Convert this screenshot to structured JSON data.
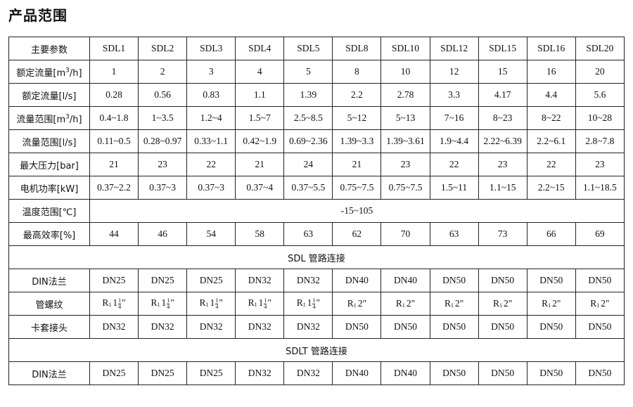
{
  "title": "产品范围",
  "table": {
    "header": [
      "主要参数",
      "SDL1",
      "SDL2",
      "SDL3",
      "SDL4",
      "SDL5",
      "SDL8",
      "SDL10",
      "SDL12",
      "SDL15",
      "SDL16",
      "SDL20"
    ],
    "rows": [
      {
        "label": "额定流量[m",
        "label_sup": "3",
        "label_tail": "/h]",
        "values": [
          "1",
          "2",
          "3",
          "4",
          "5",
          "8",
          "10",
          "12",
          "15",
          "16",
          "20"
        ]
      },
      {
        "label": "额定流量[l/s]",
        "values": [
          "0.28",
          "0.56",
          "0.83",
          "1.1",
          "1.39",
          "2.2",
          "2.78",
          "3.3",
          "4.17",
          "4.4",
          "5.6"
        ]
      },
      {
        "label": "流量范围[m",
        "label_sup": "3",
        "label_tail": "/h]",
        "values": [
          "0.4~1.8",
          "1~3.5",
          "1.2~4",
          "1.5~7",
          "2.5~8.5",
          "5~12",
          "5~13",
          "7~16",
          "8~23",
          "8~22",
          "10~28"
        ]
      },
      {
        "label": "流量范围[l/s]",
        "values": [
          "0.11~0.5",
          "0.28~0.97",
          "0.33~1.1",
          "0.42~1.9",
          "0.69~2.36",
          "1.39~3.3",
          "1.39~3.61",
          "1.9~4.4",
          "2.22~6.39",
          "2.2~6.1",
          "2.8~7.8"
        ]
      },
      {
        "label": "最大压力[bar]",
        "values": [
          "21",
          "23",
          "22",
          "21",
          "24",
          "21",
          "23",
          "22",
          "23",
          "22",
          "23"
        ]
      },
      {
        "label": "电机功率[kW]",
        "values": [
          "0.37~2.2",
          "0.37~3",
          "0.37~3",
          "0.37~4",
          "0.37~5.5",
          "0.75~7.5",
          "0.75~7.5",
          "1.5~11",
          "1.1~15",
          "2.2~15",
          "1.1~18.5"
        ]
      },
      {
        "label": "温度范围[℃]",
        "span": "-15~105"
      },
      {
        "label": "最高效率[%]",
        "values": [
          "44",
          "46",
          "54",
          "58",
          "63",
          "62",
          "70",
          "63",
          "73",
          "66",
          "69"
        ]
      },
      {
        "section": "SDL 管路连接"
      },
      {
        "label": "DIN法兰",
        "values": [
          "DN25",
          "DN25",
          "DN25",
          "DN32",
          "DN32",
          "DN40",
          "DN40",
          "DN50",
          "DN50",
          "DN50",
          "DN50"
        ]
      },
      {
        "label": "管螺纹",
        "threads": [
          {
            "r": "R",
            "sub": "1",
            "whole": "1",
            "num": "1",
            "den": "4",
            "mark": "\""
          },
          {
            "r": "R",
            "sub": "1",
            "whole": "1",
            "num": "1",
            "den": "4",
            "mark": "\""
          },
          {
            "r": "R",
            "sub": "1",
            "whole": "1",
            "num": "1",
            "den": "4",
            "mark": "\""
          },
          {
            "r": "R",
            "sub": "1",
            "whole": "1",
            "num": "1",
            "den": "4",
            "mark": "\""
          },
          {
            "r": "R",
            "sub": "1",
            "whole": "1",
            "num": "1",
            "den": "4",
            "mark": "\""
          },
          {
            "r": "R",
            "sub": "1",
            "whole": "2",
            "mark": "\""
          },
          {
            "r": "R",
            "sub": "1",
            "whole": "2",
            "mark": "\""
          },
          {
            "r": "R",
            "sub": "1",
            "whole": "2",
            "mark": "\""
          },
          {
            "r": "R",
            "sub": "1",
            "whole": "2",
            "mark": "\""
          },
          {
            "r": "R",
            "sub": "1",
            "whole": "2",
            "mark": "\""
          },
          {
            "r": "R",
            "sub": "1",
            "whole": "2",
            "mark": "\""
          }
        ]
      },
      {
        "label": "卡套接头",
        "values": [
          "DN32",
          "DN32",
          "DN32",
          "DN32",
          "DN32",
          "DN50",
          "DN50",
          "DN50",
          "DN50",
          "DN50",
          "DN50"
        ]
      },
      {
        "section": "SDLT 管路连接"
      },
      {
        "label": "DIN法兰",
        "values": [
          "DN25",
          "DN25",
          "DN25",
          "DN32",
          "DN32",
          "DN40",
          "DN40",
          "DN50",
          "DN50",
          "DN50",
          "DN50"
        ]
      }
    ]
  }
}
